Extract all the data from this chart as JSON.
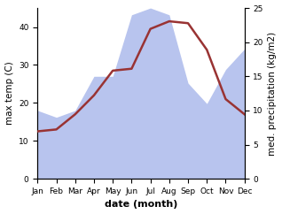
{
  "months": [
    "Jan",
    "Feb",
    "Mar",
    "Apr",
    "May",
    "Jun",
    "Jul",
    "Aug",
    "Sep",
    "Oct",
    "Nov",
    "Dec"
  ],
  "temp": [
    12.5,
    13.0,
    17.0,
    22.0,
    28.5,
    29.0,
    39.5,
    41.5,
    41.0,
    34.0,
    21.0,
    17.0
  ],
  "precip": [
    10.0,
    9.0,
    10.0,
    15.0,
    15.0,
    24.0,
    25.0,
    24.0,
    14.0,
    11.0,
    16.0,
    19.0
  ],
  "temp_color": "#993333",
  "precip_fill_color": "#b8c4ee",
  "ylabel_left": "max temp (C)",
  "ylabel_right": "med. precipitation (kg/m2)",
  "xlabel": "date (month)",
  "ylim_left": [
    0,
    45
  ],
  "ylim_right": [
    0,
    25
  ],
  "yticks_left": [
    0,
    10,
    20,
    30,
    40
  ],
  "yticks_right": [
    0,
    5,
    10,
    15,
    20,
    25
  ],
  "label_fontsize": 7.5,
  "tick_fontsize": 6.5,
  "xlabel_fontsize": 8,
  "linewidth": 1.8
}
